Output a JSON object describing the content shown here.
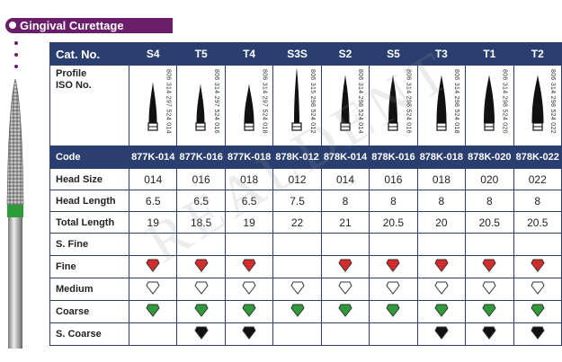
{
  "title": "Gingival Curettage",
  "watermark": "REALDENT",
  "table": {
    "header_label": "Cat. No.",
    "columns": [
      "S4",
      "T5",
      "T4",
      "S3S",
      "S2",
      "S5",
      "T3",
      "T1",
      "T2"
    ],
    "profile_label_line1": "Profile",
    "profile_label_line2": "ISO No.",
    "iso_numbers": [
      "806 314 297 524 014",
      "806 314 297 524 016",
      "806 314 297 524 018",
      "806 315 298 524 012",
      "806 314 298 524 014",
      "806 314 298 524 016",
      "806 314 298 524 018",
      "806 314 298 524 020",
      "806 314 298 524 022"
    ],
    "code_label": "Code",
    "codes": [
      "877K-014",
      "877K-016",
      "877K-018",
      "878K-012",
      "878K-014",
      "878K-016",
      "878K-018",
      "878K-020",
      "878K-022"
    ],
    "head_size_label": "Head Size",
    "head_size": [
      "014",
      "016",
      "018",
      "012",
      "014",
      "016",
      "018",
      "020",
      "022"
    ],
    "head_length_label": "Head Length",
    "head_length": [
      "6.5",
      "6.5",
      "6.5",
      "7.5",
      "8",
      "8",
      "8",
      "8",
      "8"
    ],
    "total_length_label": "Total Length",
    "total_length": [
      "19",
      "18.5",
      "19",
      "22",
      "21",
      "20.5",
      "20",
      "20.5",
      "20.5"
    ],
    "grits": [
      {
        "label": "S. Fine",
        "color": "#888888",
        "available": [
          false,
          false,
          false,
          false,
          false,
          false,
          false,
          false,
          false
        ]
      },
      {
        "label": "Fine",
        "color": "#d42b2b",
        "available": [
          true,
          true,
          true,
          false,
          true,
          true,
          true,
          true,
          true
        ]
      },
      {
        "label": "Medium",
        "color": "#ffffff",
        "available": [
          true,
          true,
          true,
          true,
          true,
          true,
          true,
          true,
          true
        ]
      },
      {
        "label": "Coarse",
        "color": "#2e9a3a",
        "available": [
          true,
          true,
          true,
          true,
          true,
          true,
          true,
          true,
          true
        ]
      },
      {
        "label": "S. Coarse",
        "color": "#111111",
        "available": [
          false,
          true,
          true,
          false,
          false,
          false,
          true,
          true,
          true
        ]
      }
    ]
  }
}
